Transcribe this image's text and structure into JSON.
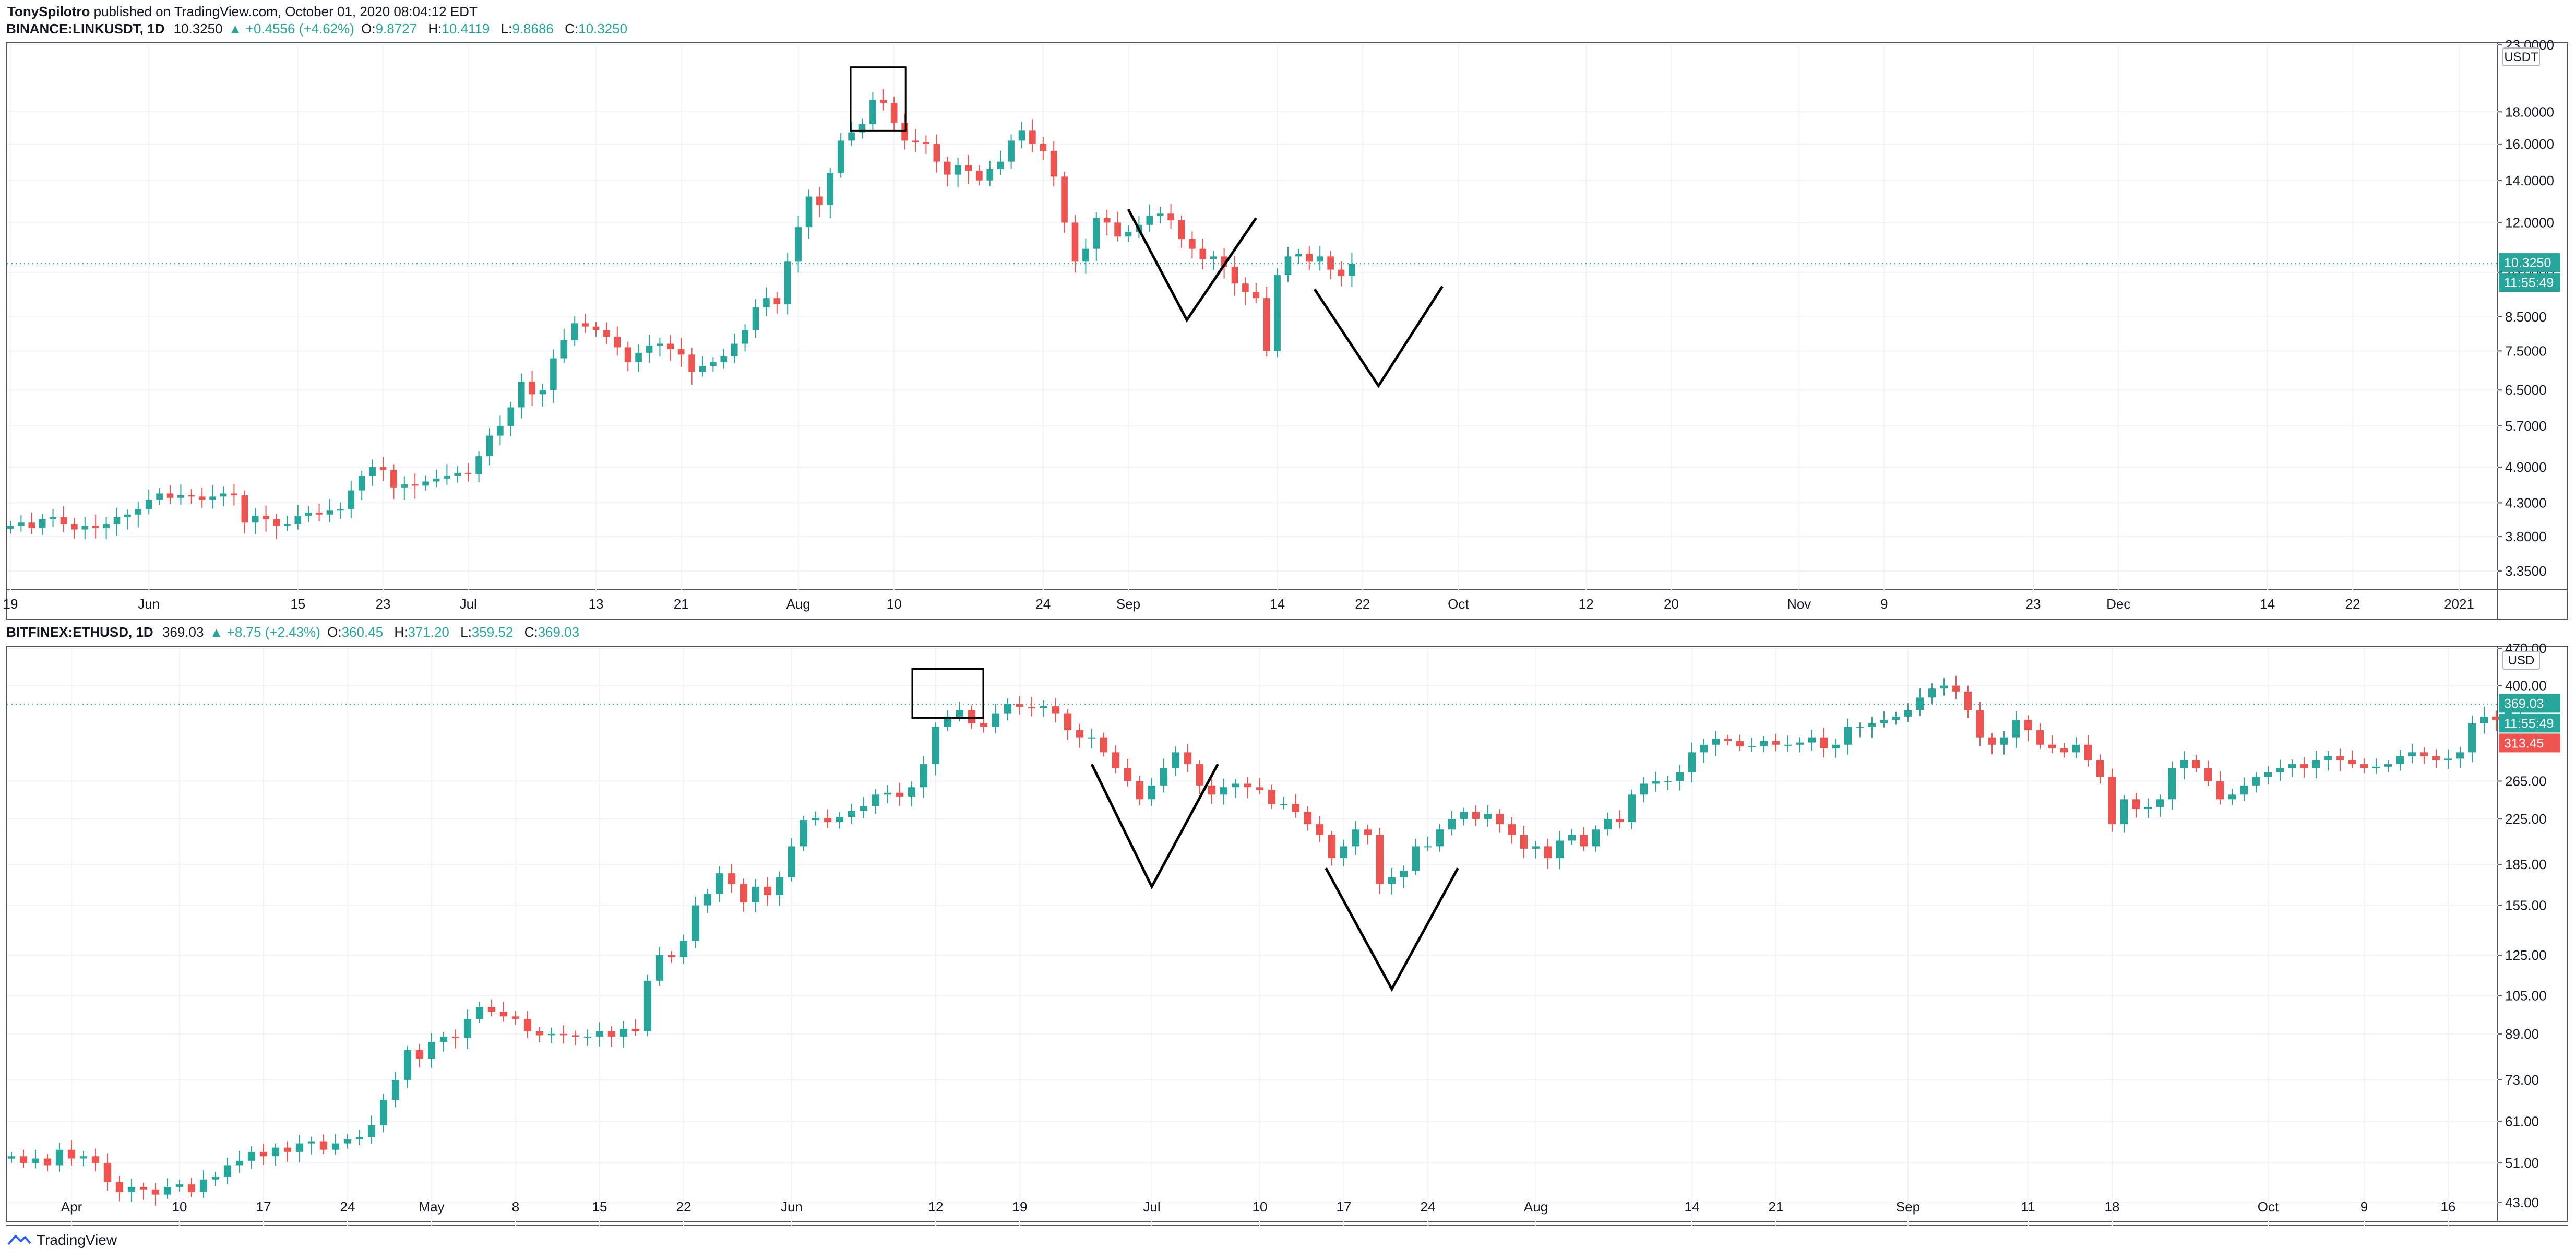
{
  "header": {
    "author": "TonySpilotro",
    "text": "published on TradingView.com, October 01, 2020 08:04:12 EDT"
  },
  "footer": {
    "brand": "TradingView"
  },
  "colors": {
    "up": "#26a69a",
    "down": "#ef5350",
    "grid": "#f0f3fa",
    "axis": "#131722"
  },
  "panels": [
    {
      "symbol": "BINANCE:LINKUSDT, 1D",
      "last": "10.3250",
      "change": "▲ +0.4556 (+4.62%)",
      "o": "9.8727",
      "h": "10.4119",
      "l": "9.8686",
      "c": "10.3250",
      "currency": "USDT",
      "price_labels": [
        {
          "text": "10.3250",
          "color": "#26a69a"
        },
        {
          "text": "11:55:49",
          "color": "#26a69a"
        }
      ]
    },
    {
      "symbol": "BITFINEX:ETHUSD, 1D",
      "last": "369.03",
      "change": "▲ +8.75 (+2.43%)",
      "o": "360.45",
      "h": "371.20",
      "l": "359.52",
      "c": "369.03",
      "currency": "USD",
      "price_labels": [
        {
          "text": "369.03",
          "color": "#26a69a"
        },
        {
          "text": "11:55:49",
          "color": "#26a69a"
        },
        {
          "text": "313.45",
          "color": "#ef5350"
        }
      ]
    }
  ],
  "chart_data": [
    {
      "type": "candlestick",
      "title": "BINANCE:LINKUSDT, 1D",
      "scale": "log",
      "ylim": [
        3.2,
        23.0
      ],
      "y_ticks": [
        "23.0000",
        "18.0000",
        "16.0000",
        "14.0000",
        "12.0000",
        "10.0000",
        "8.5000",
        "7.5000",
        "6.5000",
        "5.7000",
        "4.9000",
        "4.3000",
        "3.8000",
        "3.3500"
      ],
      "y_tick_values": [
        23,
        18,
        16,
        14,
        12,
        10,
        8.5,
        7.5,
        6.5,
        5.7,
        4.9,
        4.3,
        3.8,
        3.35
      ],
      "x_ticks": [
        "19",
        "Jun",
        "15",
        "23",
        "Jul",
        "13",
        "21",
        "Aug",
        "10",
        "24",
        "Sep",
        "14",
        "22",
        "Oct",
        "12",
        "20",
        "Nov",
        "9",
        "23",
        "Dec",
        "14",
        "22",
        "2021"
      ],
      "x_tick_days": [
        0,
        13,
        27,
        35,
        43,
        55,
        63,
        74,
        83,
        97,
        105,
        119,
        127,
        136,
        148,
        156,
        168,
        176,
        190,
        198,
        212,
        220,
        230
      ],
      "day_range": [
        0,
        236
      ],
      "last_day": 136,
      "closes": [
        3.95,
        4.0,
        3.92,
        4.05,
        4.08,
        3.98,
        3.9,
        3.95,
        3.92,
        3.98,
        4.08,
        4.12,
        4.2,
        4.35,
        4.45,
        4.38,
        4.42,
        4.4,
        4.35,
        4.4,
        4.45,
        4.42,
        4.0,
        4.1,
        4.05,
        3.95,
        3.98,
        4.1,
        4.15,
        4.12,
        4.18,
        4.2,
        4.5,
        4.75,
        4.9,
        4.85,
        4.55,
        4.6,
        4.58,
        4.65,
        4.7,
        4.75,
        4.8,
        4.78,
        5.1,
        5.5,
        5.7,
        6.1,
        6.7,
        6.4,
        6.5,
        7.3,
        7.8,
        8.3,
        8.2,
        8.1,
        7.9,
        7.6,
        7.2,
        7.45,
        7.65,
        7.7,
        7.55,
        7.4,
        6.95,
        7.1,
        7.2,
        7.35,
        7.7,
        8.1,
        8.8,
        9.1,
        8.9,
        10.4,
        11.8,
        13.2,
        12.8,
        14.4,
        16.2,
        16.7,
        17.2,
        18.8,
        18.6,
        17.3,
        16.2,
        16.1,
        16.0,
        15.0,
        14.3,
        14.8,
        14.5,
        14.0,
        14.6,
        15.0,
        16.2,
        16.8,
        16.0,
        15.6,
        14.2,
        12.0,
        10.4,
        10.9,
        12.2,
        12.0,
        11.4,
        11.6,
        11.9,
        12.3,
        12.4,
        12.1,
        11.3,
        10.9,
        10.5,
        10.6,
        10.2,
        9.6,
        9.3,
        9.1,
        7.5,
        9.9,
        10.6,
        10.7,
        10.4,
        10.6,
        10.1,
        9.87,
        10.325
      ]
    },
    {
      "type": "candlestick",
      "title": "BITFINEX:ETHUSD, 1D",
      "scale": "log",
      "ylim": [
        40,
        470
      ],
      "y_ticks": [
        "470.00",
        "400.00",
        "265.00",
        "225.00",
        "185.00",
        "155.00",
        "125.00",
        "105.00",
        "89.00",
        "73.00",
        "61.00",
        "51.00",
        "43.00"
      ],
      "y_tick_values": [
        470,
        400,
        265,
        225,
        185,
        155,
        125,
        105,
        89,
        73,
        61,
        51,
        43
      ],
      "x_ticks": [
        "Apr",
        "10",
        "17",
        "24",
        "May",
        "8",
        "15",
        "22",
        "Jun",
        "12",
        "19",
        "Jul",
        "10",
        "17",
        "24",
        "Aug",
        "14",
        "21",
        "Sep",
        "11",
        "18",
        "Oct",
        "9",
        "16"
      ],
      "x_tick_days": [
        5,
        14,
        21,
        28,
        35,
        42,
        49,
        56,
        65,
        77,
        84,
        95,
        104,
        111,
        118,
        127,
        140,
        147,
        158,
        168,
        175,
        188,
        196,
        203
      ],
      "day_range": [
        0,
        206
      ],
      "last_day": 206,
      "closes": [
        52.5,
        51.0,
        52.0,
        50.5,
        54.0,
        52.0,
        52.5,
        51.0,
        47.0,
        45.0,
        46.0,
        45.5,
        44.5,
        46.0,
        46.5,
        45.0,
        47.5,
        48.0,
        50.5,
        51.5,
        53.5,
        52.5,
        54.5,
        53.5,
        55.5,
        56.0,
        54.0,
        55.5,
        56.5,
        57.0,
        60.0,
        67.0,
        73.0,
        83.0,
        80.0,
        86.0,
        88.0,
        87.5,
        95.0,
        100.0,
        98.0,
        96.0,
        95.0,
        90.0,
        88.5,
        89.0,
        88.5,
        88.0,
        88.0,
        90.0,
        88.0,
        91.0,
        90.0,
        112.0,
        125.0,
        124.0,
        133.0,
        155.0,
        163.0,
        178.0,
        170.0,
        157.0,
        168.0,
        162.0,
        175.0,
        200.0,
        224.0,
        226.0,
        222.0,
        227.0,
        233.0,
        238.0,
        250.0,
        252.0,
        248.0,
        258.0,
        285.0,
        335.0,
        350.0,
        360.0,
        340.0,
        335.0,
        355.0,
        370.0,
        365.0,
        363.0,
        366.0,
        355.0,
        330.0,
        320.0,
        320.0,
        300.0,
        280.0,
        265.0,
        245.0,
        260.0,
        280.0,
        300.0,
        285.0,
        260.0,
        250.0,
        258.0,
        262.0,
        258.0,
        255.0,
        240.0,
        240.0,
        232.0,
        220.0,
        210.0,
        190.0,
        200.0,
        215.0,
        210.0,
        170.0,
        175.0,
        180.0,
        200.0,
        200.0,
        215.0,
        225.0,
        232.0,
        225.0,
        230.0,
        220.0,
        210.0,
        198.0,
        200.0,
        190.0,
        205.0,
        210.0,
        200.0,
        215.0,
        225.0,
        222.0,
        250.0,
        262.0,
        265.0,
        265.0,
        275.0,
        300.0,
        310.0,
        318.0,
        315.0,
        308.0,
        308.0,
        315.0,
        310.0,
        310.0,
        313.0,
        320.0,
        305.0,
        310.0,
        335.0,
        335.0,
        340.0,
        345.0,
        350.0,
        360.0,
        380.0,
        395.0,
        400.0,
        390.0,
        360.0,
        320.0,
        310.0,
        320.0,
        345.0,
        330.0,
        310.0,
        305.0,
        300.0,
        310.0,
        290.0,
        270.0,
        220.0,
        245.0,
        235.0,
        237.0,
        245.0,
        280.0,
        290.0,
        280.0,
        265.0,
        245.0,
        250.0,
        260.0,
        270.0,
        275.0,
        280.0,
        285.0,
        280.0,
        290.0,
        295.0,
        290.0,
        285.0,
        280.0,
        282.0,
        285.0,
        295.0,
        300.0,
        295.0,
        290.0,
        292.0,
        300.0,
        340.0,
        350.0,
        345.0,
        360.0,
        369.03
      ]
    }
  ]
}
